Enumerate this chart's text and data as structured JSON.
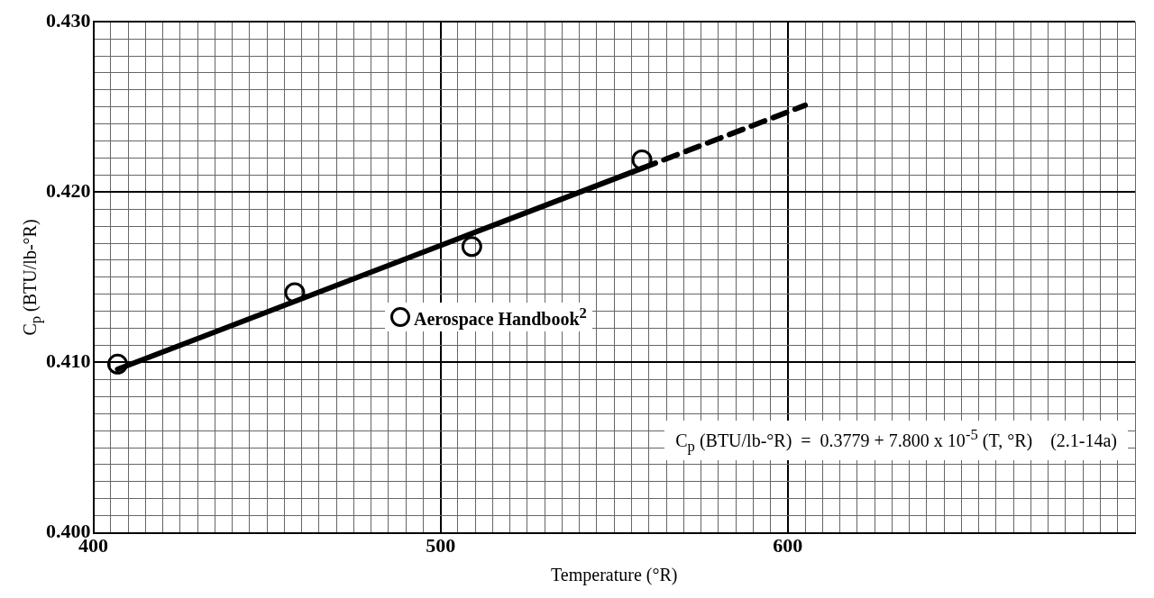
{
  "chart_data": {
    "type": "scatter",
    "xlabel": "Temperature (°R)",
    "ylabel": "C$_{p}$ (BTU/lb-°R)",
    "xlim": [
      400,
      700
    ],
    "xticks": [
      {
        "value": 400,
        "label": "400"
      },
      {
        "value": 405,
        "label": null
      },
      {
        "value": 410,
        "label": null
      },
      {
        "value": 415,
        "label": null
      },
      {
        "value": 420,
        "label": null
      },
      {
        "value": 425,
        "label": null
      },
      {
        "value": 430,
        "label": null
      },
      {
        "value": 435,
        "label": null
      },
      {
        "value": 440,
        "label": null
      },
      {
        "value": 445,
        "label": null
      },
      {
        "value": 450,
        "label": null
      },
      {
        "value": 455,
        "label": null
      },
      {
        "value": 460,
        "label": null
      },
      {
        "value": 465,
        "label": null
      },
      {
        "value": 470,
        "label": null
      },
      {
        "value": 475,
        "label": null
      },
      {
        "value": 480,
        "label": null
      },
      {
        "value": 485,
        "label": null
      },
      {
        "value": 490,
        "label": null
      },
      {
        "value": 495,
        "label": null
      },
      {
        "value": 500,
        "label": "500"
      },
      {
        "value": 505,
        "label": null
      },
      {
        "value": 510,
        "label": null
      },
      {
        "value": 515,
        "label": null
      },
      {
        "value": 520,
        "label": null
      },
      {
        "value": 525,
        "label": null
      },
      {
        "value": 530,
        "label": null
      },
      {
        "value": 535,
        "label": null
      },
      {
        "value": 540,
        "label": null
      },
      {
        "value": 545,
        "label": null
      },
      {
        "value": 550,
        "label": null
      },
      {
        "value": 555,
        "label": null
      },
      {
        "value": 560,
        "label": null
      },
      {
        "value": 565,
        "label": null
      },
      {
        "value": 570,
        "label": null
      },
      {
        "value": 575,
        "label": null
      },
      {
        "value": 580,
        "label": null
      },
      {
        "value": 585,
        "label": null
      },
      {
        "value": 590,
        "label": null
      },
      {
        "value": 595,
        "label": null
      },
      {
        "value": 600,
        "label": "600"
      },
      {
        "value": 605,
        "label": null
      },
      {
        "value": 610,
        "label": null
      },
      {
        "value": 615,
        "label": null
      },
      {
        "value": 620,
        "label": null
      },
      {
        "value": 625,
        "label": null
      },
      {
        "value": 630,
        "label": null
      },
      {
        "value": 635,
        "label": null
      },
      {
        "value": 640,
        "label": null
      },
      {
        "value": 645,
        "label": null
      },
      {
        "value": 650,
        "label": null
      },
      {
        "value": 655,
        "label": null
      },
      {
        "value": 660,
        "label": null
      },
      {
        "value": 665,
        "label": null
      },
      {
        "value": 670,
        "label": null
      },
      {
        "value": 675,
        "label": null
      },
      {
        "value": 680,
        "label": null
      },
      {
        "value": 685,
        "label": null
      },
      {
        "value": 690,
        "label": null
      },
      {
        "value": 695,
        "label": null
      },
      {
        "value": 700,
        "label": null
      }
    ],
    "ylim": [
      0.4,
      0.43
    ],
    "yticks": [
      {
        "value": 0.4,
        "label": "0.400"
      },
      {
        "value": 0.401,
        "label": null
      },
      {
        "value": 0.402,
        "label": null
      },
      {
        "value": 0.403,
        "label": null
      },
      {
        "value": 0.404,
        "label": null
      },
      {
        "value": 0.405,
        "label": null
      },
      {
        "value": 0.406,
        "label": null
      },
      {
        "value": 0.407,
        "label": null
      },
      {
        "value": 0.408,
        "label": null
      },
      {
        "value": 0.409,
        "label": null
      },
      {
        "value": 0.41,
        "label": "0.410"
      },
      {
        "value": 0.411,
        "label": null
      },
      {
        "value": 0.412,
        "label": null
      },
      {
        "value": 0.413,
        "label": null
      },
      {
        "value": 0.414,
        "label": null
      },
      {
        "value": 0.415,
        "label": null
      },
      {
        "value": 0.416,
        "label": null
      },
      {
        "value": 0.417,
        "label": null
      },
      {
        "value": 0.418,
        "label": null
      },
      {
        "value": 0.419,
        "label": null
      },
      {
        "value": 0.42,
        "label": "0.420"
      },
      {
        "value": 0.421,
        "label": null
      },
      {
        "value": 0.422,
        "label": null
      },
      {
        "value": 0.423,
        "label": null
      },
      {
        "value": 0.424,
        "label": null
      },
      {
        "value": 0.425,
        "label": null
      },
      {
        "value": 0.426,
        "label": null
      },
      {
        "value": 0.427,
        "label": null
      },
      {
        "value": 0.428,
        "label": null
      },
      {
        "value": 0.429,
        "label": null
      },
      {
        "value": 0.43,
        "label": "0.430"
      }
    ],
    "grid": true,
    "legend": "center",
    "marker": "circle",
    "annotations": [
      "C$_{p}$ (BTU/lb-°R)  =  0.3779 + 7.800 x 10$^{-5}$ (T, °R)    (2.1-14a)"
    ],
    "series": [
      {
        "name": "Aerospace Handbook$^{2}$",
        "color": "#000000",
        "x": [
          407,
          458,
          509,
          558
        ],
        "values": [
          0.4099,
          0.4141,
          0.4168,
          0.4219
        ]
      },
      {
        "type": "line",
        "color": "#000000",
        "marker": "none",
        "line_style": "solid",
        "x": [
          407,
          558
        ],
        "values": [
          0.4096,
          0.4214
        ]
      },
      {
        "type": "line",
        "color": "#000000",
        "marker": "none",
        "line_style": "dashed",
        "x": [
          558,
          605
        ],
        "values": [
          0.4214,
          0.4251
        ]
      }
    ]
  }
}
